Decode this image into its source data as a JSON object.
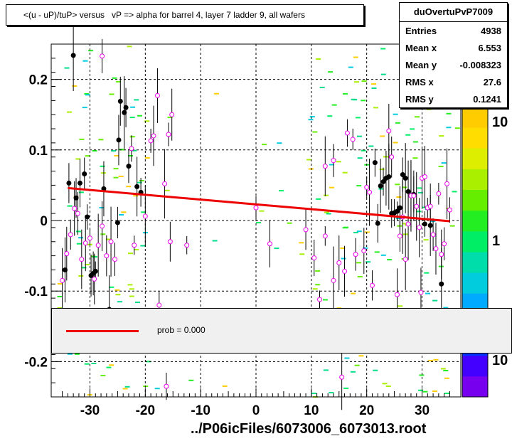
{
  "title": "<(u - uP)/tuP> versus   vP => alpha for barrel 4, layer 7 ladder 9, all wafers",
  "stats": {
    "name": "duOvertuPvP7009",
    "rows": [
      {
        "key": "Entries",
        "value": "4938"
      },
      {
        "key": "Mean x",
        "value": "6.553"
      },
      {
        "key": "Mean y",
        "value": "-0.008323"
      },
      {
        "key": "RMS x",
        "value": "27.6"
      },
      {
        "key": "RMS y",
        "value": "0.1241"
      }
    ]
  },
  "legend": {
    "label": "prob = 0.000",
    "color": "#ee0000"
  },
  "xtitle": "../P06icFiles/6073006_6073013.root",
  "chart_data": {
    "type": "scatter",
    "xlim": [
      -37,
      37
    ],
    "ylim": [
      -0.25,
      0.25
    ],
    "xticks": [
      -30,
      -20,
      -10,
      0,
      10,
      20,
      30
    ],
    "xtick_labels": [
      "-30",
      "-20",
      "-10",
      "0",
      "10",
      "20",
      "30"
    ],
    "yticks": [
      -0.2,
      -0.1,
      0,
      0.1,
      0.2
    ],
    "ytick_labels": [
      "-0.2",
      "-0.1",
      "0",
      "0.1",
      "0.2"
    ],
    "grid": true,
    "fit_line": {
      "x": [
        -34,
        35
      ],
      "y": [
        0.046,
        -0.001
      ],
      "color": "#ee0000"
    },
    "colorbar": {
      "labels": [
        "10",
        "1",
        "10"
      ],
      "colors": [
        "#7700ee",
        "#4400ff",
        "#0033ff",
        "#0077ff",
        "#00aaff",
        "#00ccdd",
        "#00ddaa",
        "#00ee66",
        "#22ee22",
        "#66ee00",
        "#aaee00",
        "#ddee00",
        "#ffdd00",
        "#ffcc00"
      ]
    },
    "series": [
      {
        "marker": "filled-circle",
        "color": "#000000",
        "points": [
          [
            -34.5,
            -0.07
          ],
          [
            -33.8,
            0.053
          ],
          [
            -33,
            0.234
          ],
          [
            -32.5,
            0.032
          ],
          [
            -31.8,
            0.053
          ],
          [
            -31,
            0.066
          ],
          [
            -30.5,
            0.005
          ],
          [
            -29.8,
            -0.078
          ],
          [
            -29.4,
            -0.075
          ],
          [
            -29,
            -0.072
          ],
          [
            -27.5,
            0.045
          ],
          [
            -26.5,
            -0.126
          ],
          [
            -25,
            -0.003
          ],
          [
            -24.5,
            0.169
          ],
          [
            -23.8,
            0.153
          ],
          [
            -23.5,
            0.16
          ],
          [
            -23,
            0.077
          ],
          [
            -21.5,
            0.048
          ],
          [
            -20.8,
            0.04
          ],
          [
            -24.8,
            0.114
          ],
          [
            22,
            -0.004
          ],
          [
            22.5,
            0.049
          ],
          [
            23,
            0.055
          ],
          [
            23.5,
            0.06
          ],
          [
            24,
            0.062
          ],
          [
            24.5,
            0.01
          ],
          [
            25,
            0.011
          ],
          [
            25.5,
            0.013
          ],
          [
            26,
            0.018
          ],
          [
            26.5,
            0.065
          ],
          [
            27,
            0.06
          ],
          [
            27.5,
            0.041
          ],
          [
            28,
            0.035
          ],
          [
            28.5,
            0.037
          ],
          [
            21.5,
            0.082
          ],
          [
            30.5,
            -0.005
          ],
          [
            31.5,
            -0.007
          ],
          [
            33.5,
            -0.09
          ]
        ]
      },
      {
        "marker": "open-circle",
        "color": "#ee00ee",
        "points": [
          [
            -35,
            -0.085
          ],
          [
            -34.2,
            -0.047
          ],
          [
            -33.5,
            -0.02
          ],
          [
            -32.8,
            0.017
          ],
          [
            -32.2,
            0.01
          ],
          [
            -31.5,
            -0.055
          ],
          [
            -30.8,
            -0.032
          ],
          [
            -30,
            -0.025
          ],
          [
            -29.2,
            -0.083
          ],
          [
            -28.5,
            -0.035
          ],
          [
            -27.8,
            -0.008
          ],
          [
            -27,
            -0.05
          ],
          [
            -26.2,
            -0.03
          ],
          [
            -25.5,
            -0.055
          ],
          [
            -27.8,
            0.233
          ],
          [
            -22.5,
            0.102
          ],
          [
            -22,
            -0.035
          ],
          [
            -20,
            0.006
          ],
          [
            -19,
            0.113
          ],
          [
            -18.5,
            0.12
          ],
          [
            -17.8,
            0.177
          ],
          [
            -16.5,
            0.052
          ],
          [
            -15.2,
            0.15
          ],
          [
            -15.5,
            -0.03
          ],
          [
            -12.5,
            -0.035
          ],
          [
            -15.8,
            0.122
          ],
          [
            -17.5,
            -0.12
          ],
          [
            -16.2,
            -0.235
          ],
          [
            0,
            0.018
          ],
          [
            2.5,
            -0.033
          ],
          [
            9,
            -0.013
          ],
          [
            10.5,
            -0.053
          ],
          [
            12.5,
            0.077
          ],
          [
            14,
            0.085
          ],
          [
            15,
            -0.06
          ],
          [
            16,
            -0.072
          ],
          [
            16.5,
            0.124
          ],
          [
            17.5,
            0.115
          ],
          [
            18,
            -0.048
          ],
          [
            19.5,
            -0.043
          ],
          [
            20,
            0.047
          ],
          [
            20.5,
            0.04
          ],
          [
            21,
            -0.092
          ],
          [
            15.5,
            -0.222
          ],
          [
            11.5,
            -0.112
          ],
          [
            12.5,
            -0.022
          ],
          [
            14,
            -0.085
          ],
          [
            24,
            0.127
          ],
          [
            24.5,
            0.09
          ],
          [
            26,
            -0.022
          ],
          [
            26.5,
            0.005
          ],
          [
            27,
            -0.055
          ],
          [
            27.5,
            -0.005
          ],
          [
            28,
            0.035
          ],
          [
            28.5,
            0.035
          ],
          [
            29,
            0.02
          ],
          [
            29.5,
            -0.01
          ],
          [
            30,
            0.06
          ],
          [
            30.5,
            0.062
          ],
          [
            31,
            0.018
          ],
          [
            31.5,
            0.02
          ],
          [
            32,
            -0.02
          ],
          [
            32.5,
            -0.04
          ],
          [
            33,
            0.038
          ],
          [
            33.5,
            -0.048
          ],
          [
            34,
            -0.033
          ],
          [
            34.5,
            0.052
          ],
          [
            35,
            0.015
          ],
          [
            29.8,
            -0.102
          ],
          [
            25.5,
            -0.105
          ]
        ]
      }
    ]
  }
}
